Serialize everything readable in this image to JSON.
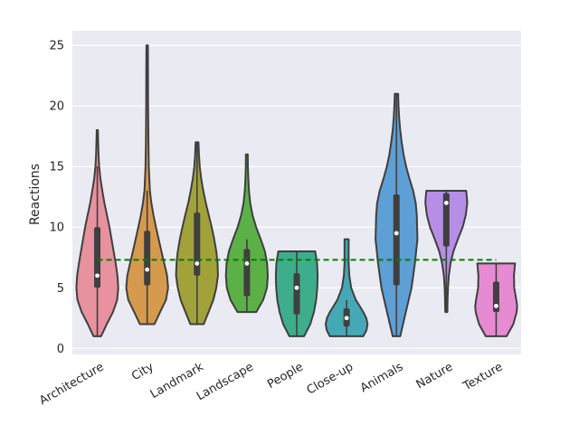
{
  "chart_data": {
    "type": "violin",
    "title": "",
    "xlabel": "",
    "ylabel": "Reactions",
    "ylim": [
      -0.5,
      26.2
    ],
    "yticks": [
      0,
      5,
      10,
      15,
      20,
      25
    ],
    "grid": true,
    "legend": "none",
    "reference_line": {
      "value": 7.3,
      "color": "#008000",
      "style": "dashed"
    },
    "categories": [
      "Architecture",
      "City",
      "Landmark",
      "Landscape",
      "People",
      "Close-up",
      "Animals",
      "Nature",
      "Texture"
    ],
    "series": [
      {
        "category": "Architecture",
        "color": "#E8919F",
        "min": 1,
        "q1": 5,
        "median": 6,
        "q3": 10,
        "max": 18,
        "whisker_high": 15,
        "density": [
          [
            1,
            0.18
          ],
          [
            2,
            0.45
          ],
          [
            3,
            0.75
          ],
          [
            4,
            0.95
          ],
          [
            5,
            1.0
          ],
          [
            6,
            0.96
          ],
          [
            7,
            0.88
          ],
          [
            8,
            0.78
          ],
          [
            9,
            0.68
          ],
          [
            10,
            0.58
          ],
          [
            11,
            0.46
          ],
          [
            12,
            0.34
          ],
          [
            13,
            0.24
          ],
          [
            14,
            0.15
          ],
          [
            15,
            0.09
          ],
          [
            16,
            0.06
          ],
          [
            17,
            0.04
          ],
          [
            18,
            0.03
          ]
        ]
      },
      {
        "category": "City",
        "color": "#D59A4E",
        "min": 2,
        "q1": 5.2,
        "median": 6.5,
        "q3": 9.7,
        "max": 25,
        "whisker_high": 13,
        "density": [
          [
            2,
            0.35
          ],
          [
            3,
            0.62
          ],
          [
            4,
            0.9
          ],
          [
            5,
            1.0
          ],
          [
            6,
            0.95
          ],
          [
            7,
            0.82
          ],
          [
            8,
            0.68
          ],
          [
            9,
            0.55
          ],
          [
            10,
            0.42
          ],
          [
            11,
            0.3
          ],
          [
            12,
            0.2
          ],
          [
            13,
            0.13
          ],
          [
            15,
            0.08
          ],
          [
            17,
            0.06
          ],
          [
            20,
            0.045
          ],
          [
            23,
            0.04
          ],
          [
            25,
            0.035
          ]
        ]
      },
      {
        "category": "Landmark",
        "color": "#A2A23A",
        "min": 2,
        "q1": 6,
        "median": 7,
        "q3": 11.2,
        "max": 17,
        "whisker_high": 17,
        "density": [
          [
            2,
            0.32
          ],
          [
            3,
            0.55
          ],
          [
            4,
            0.78
          ],
          [
            5,
            0.92
          ],
          [
            6,
            1.0
          ],
          [
            7,
            0.98
          ],
          [
            8,
            0.92
          ],
          [
            9,
            0.82
          ],
          [
            10,
            0.7
          ],
          [
            11,
            0.56
          ],
          [
            12,
            0.42
          ],
          [
            13,
            0.3
          ],
          [
            14,
            0.2
          ],
          [
            15,
            0.13
          ],
          [
            16,
            0.09
          ],
          [
            17,
            0.07
          ]
        ]
      },
      {
        "category": "Landscape",
        "color": "#5CB146",
        "min": 3,
        "q1": 4.3,
        "median": 7,
        "q3": 8.2,
        "max": 16,
        "whisker_high": 9,
        "density": [
          [
            3,
            0.45
          ],
          [
            4,
            0.78
          ],
          [
            5,
            0.96
          ],
          [
            6,
            1.0
          ],
          [
            7,
            0.97
          ],
          [
            8,
            0.86
          ],
          [
            9,
            0.66
          ],
          [
            10,
            0.44
          ],
          [
            11,
            0.27
          ],
          [
            12,
            0.16
          ],
          [
            13,
            0.1
          ],
          [
            14,
            0.07
          ],
          [
            15,
            0.05
          ],
          [
            16,
            0.045
          ]
        ]
      },
      {
        "category": "People",
        "color": "#3DAD8C",
        "min": 1,
        "q1": 2.8,
        "median": 5,
        "q3": 6.2,
        "max": 8,
        "whisker_high": 8,
        "density": [
          [
            1,
            0.35
          ],
          [
            2,
            0.65
          ],
          [
            3,
            0.82
          ],
          [
            4,
            0.93
          ],
          [
            5,
            0.98
          ],
          [
            6,
            1.0
          ],
          [
            7,
            0.97
          ],
          [
            8,
            0.88
          ]
        ]
      },
      {
        "category": "Close-up",
        "color": "#44A9B5",
        "min": 1,
        "q1": 1.8,
        "median": 2.5,
        "q3": 3.3,
        "max": 9,
        "whisker_high": 4,
        "density": [
          [
            1,
            0.8
          ],
          [
            1.5,
            0.95
          ],
          [
            2,
            1.0
          ],
          [
            2.5,
            0.94
          ],
          [
            3,
            0.8
          ],
          [
            3.5,
            0.62
          ],
          [
            4,
            0.44
          ],
          [
            5,
            0.22
          ],
          [
            6,
            0.13
          ],
          [
            7,
            0.1
          ],
          [
            8,
            0.1
          ],
          [
            9,
            0.1
          ]
        ]
      },
      {
        "category": "Animals",
        "color": "#5E9FD5",
        "min": 1,
        "q1": 5.2,
        "median": 9.5,
        "q3": 12.7,
        "max": 21,
        "whisker_high": 21,
        "density": [
          [
            1,
            0.18
          ],
          [
            3,
            0.45
          ],
          [
            5,
            0.72
          ],
          [
            7,
            0.88
          ],
          [
            9,
            1.0
          ],
          [
            11,
            0.97
          ],
          [
            12,
            0.92
          ],
          [
            13,
            0.8
          ],
          [
            14,
            0.62
          ],
          [
            15,
            0.46
          ],
          [
            16,
            0.34
          ],
          [
            17,
            0.25
          ],
          [
            18,
            0.18
          ],
          [
            19,
            0.13
          ],
          [
            20,
            0.1
          ],
          [
            21,
            0.08
          ]
        ]
      },
      {
        "category": "Nature",
        "color": "#B78EE6",
        "min": 3,
        "q1": 8.4,
        "median": 12,
        "q3": 12.8,
        "max": 13,
        "whisker_high": 13,
        "density": [
          [
            3,
            0.05
          ],
          [
            4,
            0.06
          ],
          [
            5,
            0.08
          ],
          [
            6,
            0.12
          ],
          [
            7,
            0.2
          ],
          [
            8,
            0.34
          ],
          [
            9,
            0.55
          ],
          [
            10,
            0.78
          ],
          [
            11,
            0.93
          ],
          [
            12,
            1.0
          ],
          [
            12.5,
            0.98
          ],
          [
            13,
            0.95
          ]
        ]
      },
      {
        "category": "Texture",
        "color": "#E68BD2",
        "min": 1,
        "q1": 3,
        "median": 3.5,
        "q3": 5.5,
        "max": 7,
        "whisker_high": 7,
        "density": [
          [
            1,
            0.5
          ],
          [
            2,
            0.82
          ],
          [
            3,
            0.98
          ],
          [
            3.5,
            1.0
          ],
          [
            4,
            0.96
          ],
          [
            5,
            0.86
          ],
          [
            6,
            0.85
          ],
          [
            7,
            0.9
          ]
        ]
      }
    ]
  }
}
